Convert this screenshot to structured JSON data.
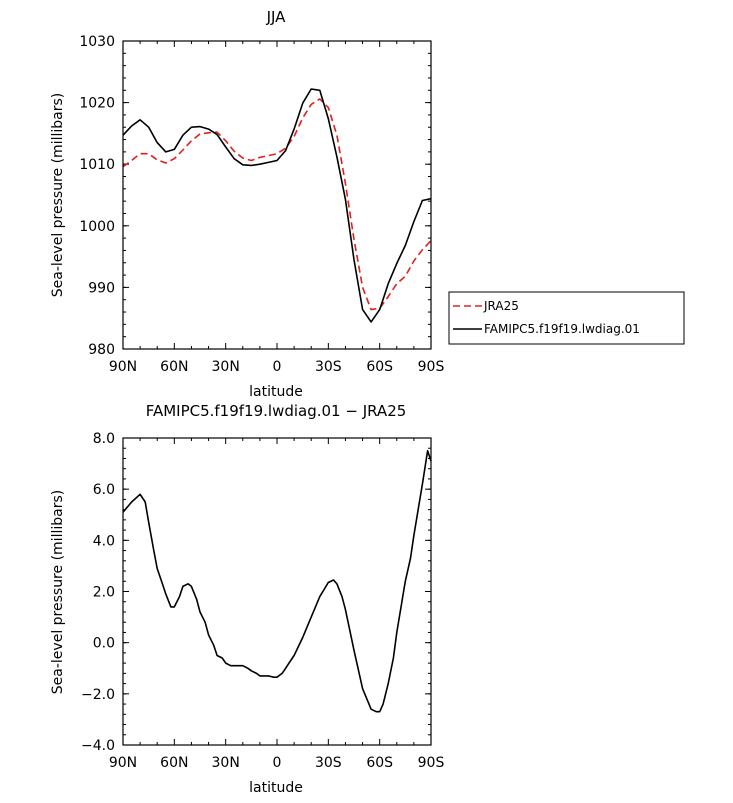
{
  "chart_data": [
    {
      "type": "line",
      "title": "JJA",
      "xlabel": "latitude",
      "ylabel": "Sea-level pressure (millibars)",
      "xlim": [
        -90,
        90
      ],
      "ylim": [
        980,
        1030
      ],
      "x_ticks": [
        -90,
        -60,
        -30,
        0,
        30,
        60,
        90
      ],
      "x_tick_labels": [
        "90N",
        "60N",
        "30N",
        "0",
        "30S",
        "60S",
        "90S"
      ],
      "y_ticks": [
        980,
        990,
        1000,
        1010,
        1020,
        1030
      ],
      "y_tick_labels": [
        "980",
        "990",
        "1000",
        "1010",
        "1020",
        "1030"
      ],
      "legend_position": "right",
      "x": [
        -90,
        -85,
        -80,
        -75,
        -70,
        -65,
        -60,
        -55,
        -50,
        -45,
        -40,
        -35,
        -30,
        -25,
        -20,
        -15,
        -10,
        -5,
        0,
        5,
        10,
        15,
        20,
        25,
        30,
        35,
        40,
        45,
        50,
        55,
        60,
        65,
        70,
        75,
        80,
        85,
        90
      ],
      "series": [
        {
          "name": "JRA25",
          "color": "#e0201b",
          "dash": "dashed",
          "values": [
            1009.6,
            1010.6,
            1011.7,
            1011.7,
            1010.7,
            1010.2,
            1010.9,
            1012.3,
            1013.8,
            1014.9,
            1015.1,
            1015.2,
            1013.8,
            1012.1,
            1011.0,
            1010.6,
            1011.1,
            1011.4,
            1011.7,
            1012.6,
            1014.5,
            1017.5,
            1019.7,
            1020.6,
            1019.2,
            1014.7,
            1006.9,
            997.8,
            990.0,
            986.4,
            986.6,
            988.5,
            990.6,
            991.8,
            994.3,
            996.1,
            997.6
          ]
        },
        {
          "name": "FAMIPC5.f19f19.lwdiag.01",
          "color": "#000000",
          "dash": "solid",
          "values": [
            1014.7,
            1016.2,
            1017.2,
            1016.0,
            1013.5,
            1012.0,
            1012.4,
            1014.7,
            1016.0,
            1016.1,
            1015.7,
            1014.8,
            1012.8,
            1010.9,
            1009.9,
            1009.8,
            1010.0,
            1010.3,
            1010.6,
            1012.2,
            1015.7,
            1019.9,
            1022.2,
            1022.0,
            1017.4,
            1011.2,
            1004.3,
            994.5,
            986.4,
            984.4,
            986.4,
            990.6,
            993.9,
            996.8,
            1000.7,
            1004.1,
            1004.4
          ]
        }
      ]
    },
    {
      "type": "line",
      "title": "FAMIPC5.f19f19.lwdiag.01 − JRA25",
      "xlabel": "latitude",
      "ylabel": "Sea-level pressure (millibars)",
      "xlim": [
        -90,
        90
      ],
      "ylim": [
        -4,
        8
      ],
      "x_ticks": [
        -90,
        -60,
        -30,
        0,
        30,
        60,
        90
      ],
      "x_tick_labels": [
        "90N",
        "60N",
        "30N",
        "0",
        "30S",
        "60S",
        "90S"
      ],
      "y_ticks": [
        -4,
        -2,
        0,
        2,
        4,
        6,
        8
      ],
      "y_tick_labels": [
        "−4.0",
        "−2.0",
        "0.0",
        "2.0",
        "4.0",
        "6.0",
        "8.0"
      ],
      "x": [
        -90,
        -85,
        -80,
        -77,
        -75,
        -72,
        -70,
        -67,
        -65,
        -62,
        -60,
        -57,
        -55,
        -52,
        -50,
        -47,
        -45,
        -42,
        -40,
        -37,
        -35,
        -32,
        -30,
        -27,
        -25,
        -22,
        -20,
        -17,
        -15,
        -12,
        -10,
        -7,
        -5,
        -2,
        0,
        3,
        5,
        7,
        10,
        15,
        20,
        25,
        30,
        33,
        35,
        38,
        40,
        45,
        50,
        55,
        58,
        60,
        62,
        65,
        68,
        70,
        73,
        75,
        78,
        80,
        83,
        85,
        88,
        90
      ],
      "series": [
        {
          "name": "",
          "color": "#000000",
          "dash": "solid",
          "values": [
            5.1,
            5.5,
            5.8,
            5.5,
            4.7,
            3.6,
            2.9,
            2.3,
            1.9,
            1.4,
            1.4,
            1.8,
            2.2,
            2.3,
            2.2,
            1.7,
            1.2,
            0.8,
            0.3,
            -0.1,
            -0.5,
            -0.6,
            -0.8,
            -0.9,
            -0.9,
            -0.9,
            -0.9,
            -1.0,
            -1.1,
            -1.2,
            -1.3,
            -1.3,
            -1.3,
            -1.35,
            -1.35,
            -1.2,
            -1.0,
            -0.8,
            -0.5,
            0.2,
            1.0,
            1.8,
            2.35,
            2.45,
            2.3,
            1.8,
            1.3,
            -0.3,
            -1.8,
            -2.6,
            -2.7,
            -2.7,
            -2.4,
            -1.6,
            -0.6,
            0.4,
            1.6,
            2.4,
            3.3,
            4.2,
            5.4,
            6.2,
            7.5,
            7.1
          ]
        }
      ]
    }
  ]
}
